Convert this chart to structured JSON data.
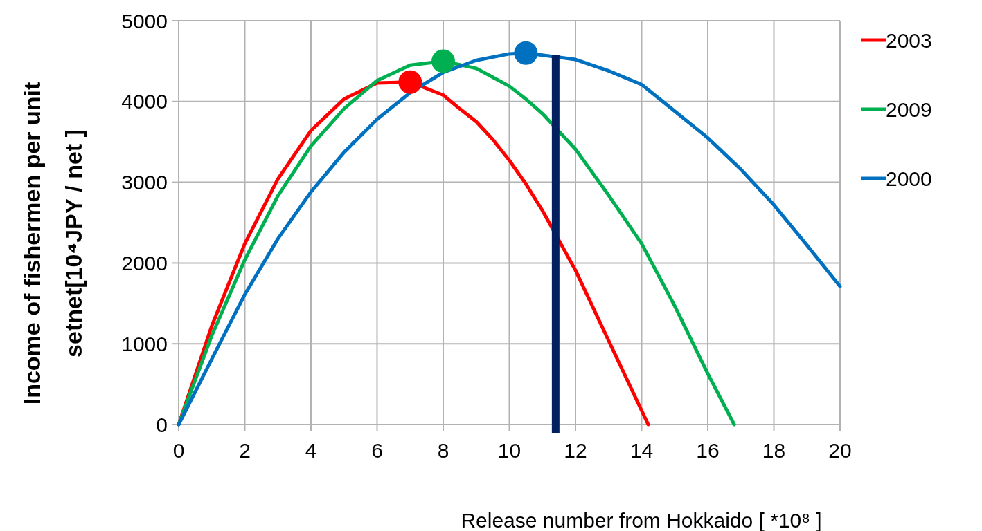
{
  "chart_data": {
    "type": "line",
    "xlabel": "Release number  from Hokkaido [ *10⁸ ]",
    "ylabel": "Income of fishermen per unit setnet[10⁴JPY / net ]",
    "xlim": [
      0,
      20
    ],
    "xticks": [
      0,
      2,
      4,
      6,
      8,
      10,
      12,
      14,
      16,
      18,
      20
    ],
    "ylim": [
      0,
      5000
    ],
    "yticks": [
      0,
      1000,
      2000,
      3000,
      4000,
      5000
    ],
    "grid": true,
    "legend": "right",
    "marker": "none",
    "line_style": "solid",
    "series": [
      {
        "name": "2003",
        "color": "#ff0000",
        "x": [
          0,
          1,
          2,
          3,
          4,
          5,
          6,
          7,
          8,
          8.5,
          9,
          9.5,
          10,
          10.5,
          11,
          12,
          13,
          14.2
        ],
        "values": [
          0,
          1220,
          2240,
          3040,
          3640,
          4030,
          4230,
          4240,
          4080,
          3910,
          3750,
          3530,
          3270,
          2980,
          2650,
          1910,
          1040,
          0
        ]
      },
      {
        "name": "2009",
        "color": "#00b050",
        "x": [
          0,
          1,
          2,
          3,
          4,
          5,
          6,
          7,
          8,
          9,
          9.5,
          10,
          10.5,
          11,
          12,
          13,
          14,
          15,
          16,
          16.8
        ],
        "values": [
          0,
          1100,
          2040,
          2830,
          3450,
          3910,
          4260,
          4450,
          4500,
          4410,
          4300,
          4190,
          4030,
          3850,
          3410,
          2840,
          2240,
          1470,
          630,
          0
        ]
      },
      {
        "name": "2000",
        "color": "#0070c0",
        "x": [
          0,
          1,
          2,
          3,
          4,
          5,
          6,
          7,
          8,
          9,
          10,
          10.5,
          12,
          13,
          14,
          15,
          16,
          17,
          18,
          19,
          20
        ],
        "values": [
          0,
          810,
          1610,
          2300,
          2880,
          3370,
          3780,
          4110,
          4360,
          4510,
          4590,
          4600,
          4520,
          4380,
          4210,
          3880,
          3550,
          3160,
          2720,
          2220,
          1710
        ]
      },
      {
        "type": "scatter",
        "color": "#ff0000",
        "x": [
          7
        ],
        "values": [
          4240
        ],
        "marker": "circle"
      },
      {
        "type": "scatter",
        "color": "#00b050",
        "x": [
          8
        ],
        "values": [
          4500
        ],
        "marker": "circle"
      },
      {
        "type": "scatter",
        "color": "#0070c0",
        "x": [
          10.5
        ],
        "values": [
          4600
        ],
        "marker": "circle"
      }
    ],
    "ref_lines": [
      {
        "axis": "x",
        "value": 11.4,
        "color": "#002060",
        "line_style": "solid"
      }
    ]
  }
}
